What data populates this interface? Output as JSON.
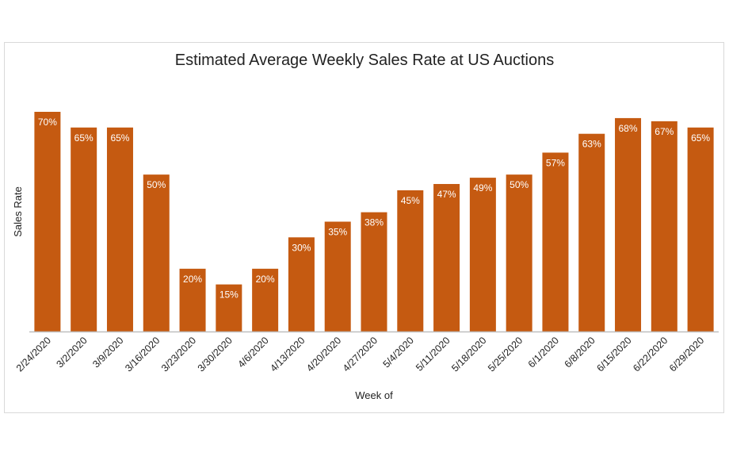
{
  "chart_data": {
    "type": "bar",
    "title": "Estimated Average Weekly Sales Rate at US Auctions",
    "xlabel": "Week of",
    "ylabel": "Sales Rate",
    "categories": [
      "2/24/2020",
      "3/2/2020",
      "3/9/2020",
      "3/16/2020",
      "3/23/2020",
      "3/30/2020",
      "4/6/2020",
      "4/13/2020",
      "4/20/2020",
      "4/27/2020",
      "5/4/2020",
      "5/11/2020",
      "5/18/2020",
      "5/25/2020",
      "6/1/2020",
      "6/8/2020",
      "6/15/2020",
      "6/22/2020",
      "6/29/2020"
    ],
    "values": [
      70,
      65,
      65,
      50,
      20,
      15,
      20,
      30,
      35,
      38,
      45,
      47,
      49,
      50,
      57,
      63,
      68,
      67,
      65
    ],
    "value_format": "%",
    "ylim": [
      0,
      70
    ],
    "grid": false,
    "legend": "none",
    "bar_color": "#C55A11",
    "label_color": "#ffffff"
  }
}
